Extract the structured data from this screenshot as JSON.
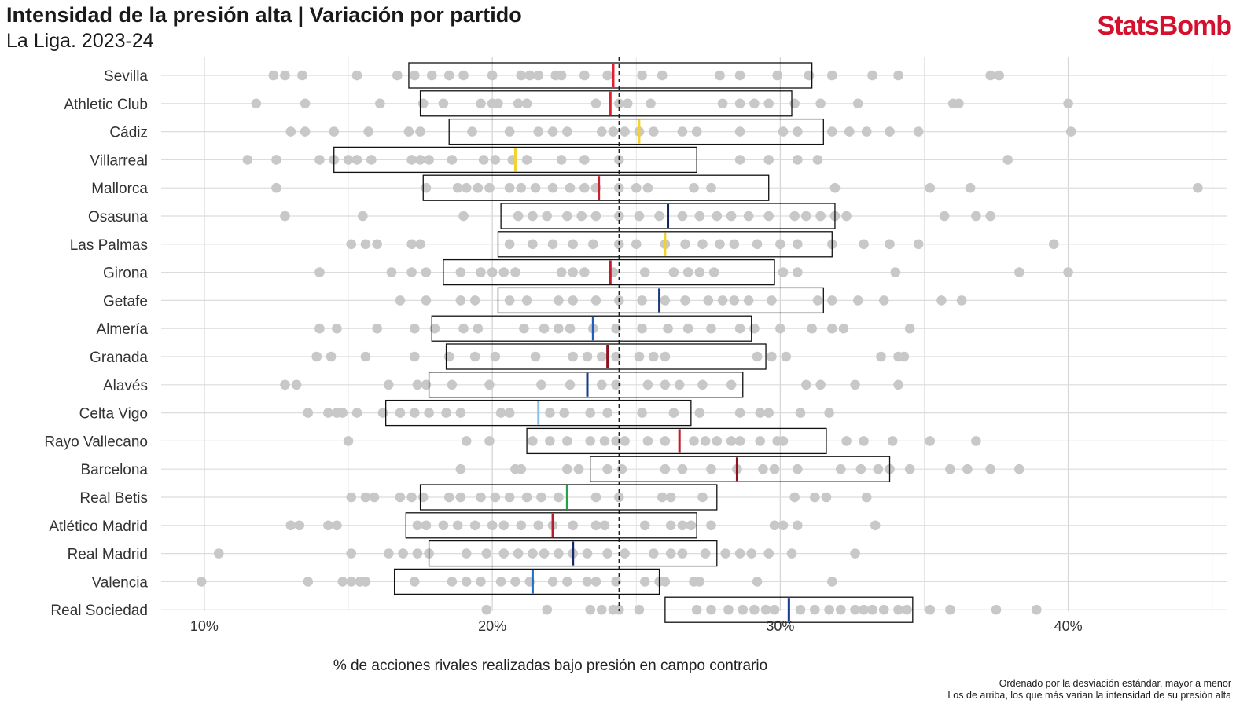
{
  "header": {
    "title": "Intensidad de la presión alta | Variación por partido",
    "subtitle": "La Liga. 2023-24",
    "brand": "StatsBomb"
  },
  "footer": {
    "caption_line1": "Ordenado por la desviación estándar, mayor a menor",
    "caption_line2": "Los de arriba, los que más varian la intensidad de su presión alta"
  },
  "chart_data": {
    "type": "strip_box",
    "xlabel": "% de acciones rivales realizadas bajo presión en campo contrario",
    "ylabel": "",
    "xlim": [
      8.5,
      45.5
    ],
    "x_ticks": [
      10,
      20,
      30,
      40
    ],
    "x_tick_labels": [
      "10%",
      "20%",
      "30%",
      "40%"
    ],
    "league_average": 24.4,
    "grid": true,
    "colors": {
      "points": "#c8c8c8",
      "box_stroke": "#111111",
      "average_line": "#111111"
    },
    "teams": [
      {
        "name": "Sevilla",
        "box": [
          17.1,
          31.1
        ],
        "mean": 24.2,
        "mean_color": "#e0202e",
        "matches": [
          12.4,
          12.8,
          13.4,
          15.3,
          16.7,
          17.3,
          17.9,
          18.5,
          19.0,
          20.0,
          21.0,
          21.3,
          21.6,
          22.2,
          22.4,
          23.2,
          24.0,
          25.2,
          25.9,
          27.9,
          28.6,
          29.9,
          31.0,
          31.8,
          33.2,
          34.1,
          37.3,
          37.6
        ]
      },
      {
        "name": "Athletic Club",
        "box": [
          17.5,
          30.4
        ],
        "mean": 24.1,
        "mean_color": "#e0202e",
        "matches": [
          11.8,
          13.5,
          16.1,
          17.6,
          18.3,
          19.6,
          20.0,
          20.2,
          20.9,
          21.2,
          23.6,
          24.4,
          24.7,
          25.5,
          28.0,
          28.6,
          29.1,
          29.6,
          30.5,
          31.4,
          32.7,
          36.0,
          36.2,
          40.0
        ]
      },
      {
        "name": "Cádiz",
        "box": [
          18.5,
          31.5
        ],
        "mean": 25.1,
        "mean_color": "#f2d22e",
        "matches": [
          13.0,
          13.5,
          14.5,
          15.7,
          17.1,
          17.5,
          19.3,
          20.6,
          21.6,
          22.1,
          22.6,
          23.8,
          24.2,
          24.6,
          25.1,
          25.6,
          26.6,
          27.1,
          28.6,
          30.1,
          30.6,
          31.8,
          32.4,
          33.0,
          33.8,
          34.8,
          40.1
        ]
      },
      {
        "name": "Villarreal",
        "box": [
          14.5,
          27.1
        ],
        "mean": 20.8,
        "mean_color": "#f2d22e",
        "matches": [
          11.5,
          12.5,
          14.0,
          14.5,
          15.0,
          15.3,
          15.8,
          17.2,
          17.5,
          17.8,
          18.6,
          19.7,
          20.1,
          20.7,
          21.2,
          22.4,
          23.2,
          24.4,
          28.6,
          29.6,
          30.6,
          31.3,
          37.9
        ]
      },
      {
        "name": "Mallorca",
        "box": [
          17.6,
          29.6
        ],
        "mean": 23.7,
        "mean_color": "#cc1f2b",
        "matches": [
          12.5,
          17.7,
          18.8,
          19.1,
          19.5,
          19.9,
          20.6,
          21.0,
          21.5,
          22.1,
          22.7,
          23.2,
          23.6,
          24.4,
          25.0,
          25.4,
          27.0,
          27.6,
          31.9,
          35.2,
          36.6,
          44.5
        ]
      },
      {
        "name": "Osasuna",
        "box": [
          20.3,
          31.9
        ],
        "mean": 26.1,
        "mean_color": "#10235a",
        "matches": [
          12.8,
          15.5,
          19.0,
          20.9,
          21.4,
          21.9,
          22.6,
          23.1,
          23.6,
          24.4,
          25.1,
          25.8,
          26.6,
          27.2,
          27.8,
          28.3,
          28.9,
          29.6,
          30.5,
          30.9,
          31.4,
          31.9,
          32.3,
          35.7,
          36.8,
          37.3
        ]
      },
      {
        "name": "Las Palmas",
        "box": [
          20.2,
          31.8
        ],
        "mean": 26.0,
        "mean_color": "#f2d22e",
        "matches": [
          15.1,
          15.6,
          16.0,
          17.2,
          17.5,
          20.6,
          21.4,
          22.1,
          22.8,
          23.5,
          24.4,
          25.0,
          26.0,
          26.7,
          27.3,
          27.9,
          28.4,
          29.2,
          30.0,
          30.6,
          31.8,
          32.9,
          33.8,
          34.8,
          39.5
        ]
      },
      {
        "name": "Girona",
        "box": [
          18.3,
          29.8
        ],
        "mean": 24.1,
        "mean_color": "#c41a2a",
        "matches": [
          14.0,
          16.5,
          17.2,
          17.7,
          18.9,
          19.6,
          20.0,
          20.4,
          20.8,
          22.4,
          22.8,
          23.2,
          24.2,
          25.3,
          26.3,
          26.8,
          27.2,
          27.7,
          30.1,
          30.6,
          34.0,
          38.3,
          40.0
        ]
      },
      {
        "name": "Getafe",
        "box": [
          20.2,
          31.5
        ],
        "mean": 25.8,
        "mean_color": "#1a3c7a",
        "matches": [
          16.8,
          17.7,
          18.9,
          19.4,
          20.6,
          21.2,
          22.3,
          22.8,
          23.6,
          24.4,
          25.2,
          26.0,
          26.7,
          27.5,
          28.0,
          28.4,
          28.9,
          29.7,
          31.3,
          31.8,
          32.7,
          33.6,
          35.6,
          36.3
        ]
      },
      {
        "name": "Almería",
        "box": [
          17.9,
          29.0
        ],
        "mean": 23.5,
        "mean_color": "#1f5cbf",
        "matches": [
          14.0,
          14.6,
          16.0,
          17.3,
          18.0,
          19.0,
          19.5,
          21.1,
          21.8,
          22.3,
          22.7,
          23.5,
          24.3,
          25.2,
          26.1,
          26.8,
          27.6,
          28.6,
          29.1,
          30.0,
          31.1,
          31.8,
          32.2,
          34.5
        ]
      },
      {
        "name": "Granada",
        "box": [
          18.4,
          29.5
        ],
        "mean": 24.0,
        "mean_color": "#8f1020",
        "matches": [
          13.9,
          14.4,
          15.6,
          17.3,
          18.5,
          19.4,
          20.1,
          21.5,
          22.8,
          23.3,
          23.8,
          24.3,
          25.1,
          25.6,
          26.0,
          29.2,
          29.7,
          30.2,
          33.5,
          34.1,
          34.3
        ]
      },
      {
        "name": "Alavés",
        "box": [
          17.8,
          28.7
        ],
        "mean": 23.3,
        "mean_color": "#1a3c8a",
        "matches": [
          12.8,
          13.2,
          16.4,
          17.4,
          17.7,
          18.6,
          19.9,
          21.7,
          22.7,
          23.8,
          24.3,
          25.4,
          26.0,
          26.5,
          27.3,
          28.3,
          30.9,
          31.4,
          32.6,
          34.1
        ]
      },
      {
        "name": "Celta Vigo",
        "box": [
          16.3,
          26.9
        ],
        "mean": 21.6,
        "mean_color": "#8bc0e8",
        "matches": [
          13.6,
          14.3,
          14.6,
          14.8,
          15.3,
          16.2,
          16.8,
          17.3,
          17.8,
          18.4,
          18.9,
          20.3,
          20.6,
          22.0,
          22.5,
          23.4,
          24.0,
          25.2,
          26.3,
          27.2,
          28.6,
          29.3,
          29.6,
          30.7,
          31.7
        ]
      },
      {
        "name": "Rayo Vallecano",
        "box": [
          21.2,
          31.6
        ],
        "mean": 26.5,
        "mean_color": "#c41a2a",
        "matches": [
          15.0,
          19.1,
          19.9,
          21.4,
          22.0,
          22.6,
          23.4,
          23.9,
          24.3,
          24.6,
          25.4,
          26.0,
          27.0,
          27.4,
          27.8,
          28.3,
          28.6,
          29.3,
          29.9,
          30.1,
          32.3,
          32.9,
          33.9,
          35.2,
          36.8
        ]
      },
      {
        "name": "Barcelona",
        "box": [
          23.4,
          33.8
        ],
        "mean": 28.5,
        "mean_color": "#8f1020",
        "matches": [
          18.9,
          20.8,
          21.0,
          22.6,
          23.0,
          24.0,
          24.5,
          26.0,
          26.6,
          27.6,
          28.5,
          29.4,
          29.8,
          30.6,
          32.1,
          32.8,
          33.4,
          33.8,
          34.5,
          35.9,
          36.5,
          37.3,
          38.3
        ]
      },
      {
        "name": "Real Betis",
        "box": [
          17.5,
          27.8
        ],
        "mean": 22.6,
        "mean_color": "#22a34a",
        "matches": [
          15.1,
          15.6,
          15.9,
          16.8,
          17.2,
          17.6,
          18.5,
          18.9,
          19.6,
          20.1,
          20.6,
          21.2,
          21.7,
          22.3,
          23.6,
          24.4,
          25.9,
          26.2,
          27.3,
          30.5,
          31.2,
          31.6,
          33.0
        ]
      },
      {
        "name": "Atlético Madrid",
        "box": [
          17.0,
          27.1
        ],
        "mean": 22.1,
        "mean_color": "#b81c2a",
        "matches": [
          13.0,
          13.3,
          14.3,
          14.6,
          17.4,
          17.7,
          18.3,
          18.8,
          19.4,
          20.0,
          20.4,
          21.0,
          21.6,
          22.1,
          22.8,
          23.6,
          23.9,
          25.3,
          26.2,
          26.6,
          26.9,
          27.6,
          29.8,
          30.1,
          30.6,
          33.3
        ]
      },
      {
        "name": "Real Madrid",
        "box": [
          17.8,
          27.8
        ],
        "mean": 22.8,
        "mean_color": "#142a6e",
        "matches": [
          10.5,
          15.1,
          16.4,
          16.9,
          17.4,
          17.8,
          19.1,
          19.8,
          20.4,
          20.9,
          21.4,
          21.8,
          22.3,
          22.8,
          23.3,
          24.0,
          24.6,
          25.6,
          26.2,
          26.6,
          27.4,
          28.1,
          28.6,
          29.0,
          29.6,
          30.4,
          32.6
        ]
      },
      {
        "name": "Valencia",
        "box": [
          16.6,
          25.8
        ],
        "mean": 21.4,
        "mean_color": "#1e6fc8",
        "matches": [
          9.9,
          13.6,
          14.8,
          15.1,
          15.4,
          15.6,
          17.3,
          18.6,
          19.1,
          19.6,
          20.3,
          20.8,
          21.3,
          22.1,
          22.6,
          23.3,
          23.6,
          24.3,
          25.3,
          25.8,
          26.0,
          27.0,
          27.2,
          29.2,
          31.8
        ]
      },
      {
        "name": "Real Sociedad",
        "box": [
          26.0,
          34.6
        ],
        "mean": 30.3,
        "mean_color": "#163a8c",
        "matches": [
          19.8,
          21.9,
          23.4,
          23.8,
          24.2,
          24.4,
          25.1,
          27.1,
          27.6,
          28.2,
          28.7,
          29.1,
          29.5,
          29.8,
          30.7,
          31.2,
          31.7,
          32.1,
          32.6,
          32.9,
          33.2,
          33.6,
          34.1,
          34.4,
          35.2,
          35.9,
          37.5,
          38.9
        ]
      }
    ]
  }
}
